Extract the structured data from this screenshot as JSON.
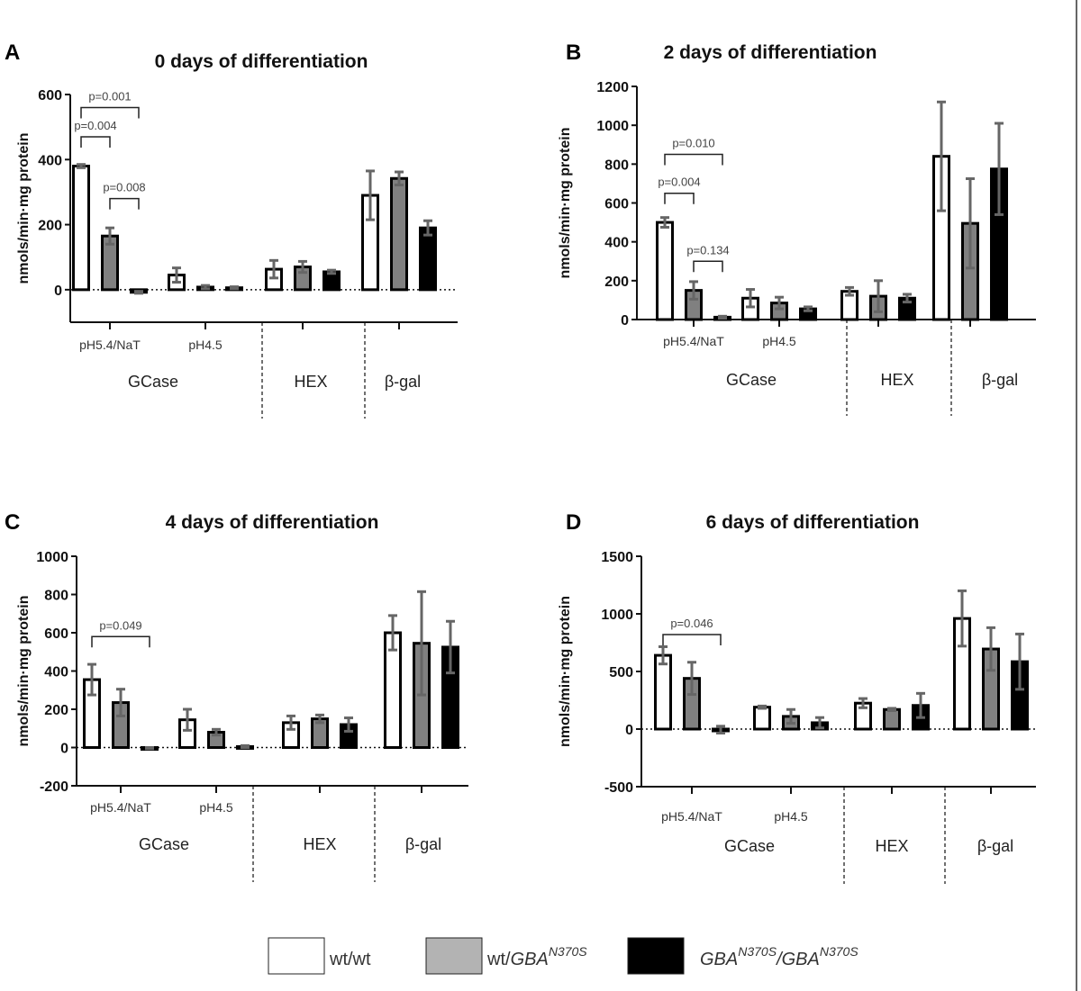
{
  "colors": {
    "wt_wt": "#ffffff",
    "wt_het": "#808080",
    "hom": "#000000",
    "error_bar": "#666666",
    "legend_het": "#b3b3b3"
  },
  "legend": [
    {
      "label": "wt/wt",
      "color": "#ffffff"
    },
    {
      "label": "wt/",
      "italic": "GBA",
      "sup": "N370S",
      "color": "#b3b3b3"
    },
    {
      "italic": "GBA",
      "sup": "N370S",
      "sep": "/",
      "italic2": "GBA",
      "sup2": "N370S",
      "color": "#000000"
    }
  ],
  "chart_data": [
    {
      "type": "bar",
      "letter": "A",
      "title": "0 days of differentiation",
      "ylabel": "nmols/min·mg protein",
      "ylim": [
        -100,
        600
      ],
      "yticks": [
        0,
        200,
        400,
        600
      ],
      "groups": [
        "GCase",
        "HEX",
        "β-gal"
      ],
      "categories": [
        "pH5.4/NaT",
        "pH4.5",
        "",
        ""
      ],
      "series": [
        {
          "name": "wt/wt",
          "values": [
            380,
            45,
            63,
            290
          ],
          "errors": [
            5,
            22,
            27,
            75
          ]
        },
        {
          "name": "wt/GBA N370S",
          "values": [
            165,
            8,
            70,
            342
          ],
          "errors": [
            25,
            5,
            17,
            20
          ]
        },
        {
          "name": "GBA N370S/GBA N370S",
          "values": [
            -8,
            6,
            55,
            190
          ],
          "errors": [
            3,
            3,
            5,
            22
          ]
        }
      ],
      "comparisons": [
        {
          "label": "p=0.001",
          "from": 0,
          "to": 2,
          "level": 560
        },
        {
          "label": "p=0.004",
          "from": 0,
          "to": 1,
          "level": 470
        },
        {
          "label": "p=0.008",
          "from": 1,
          "to": 2,
          "level": 280
        }
      ]
    },
    {
      "type": "bar",
      "letter": "B",
      "title": "2 days of differentiation",
      "ylabel": "nmols/min·mg protein",
      "ylim": [
        0,
        1200
      ],
      "yticks": [
        0,
        200,
        400,
        600,
        800,
        1000,
        1200
      ],
      "groups": [
        "GCase",
        "HEX",
        "β-gal"
      ],
      "categories": [
        "pH5.4/NaT",
        "pH4.5",
        "",
        ""
      ],
      "series": [
        {
          "name": "wt/wt",
          "values": [
            500,
            110,
            145,
            840
          ],
          "errors": [
            25,
            45,
            20,
            280
          ]
        },
        {
          "name": "wt/GBA N370S",
          "values": [
            150,
            85,
            120,
            495
          ],
          "errors": [
            45,
            30,
            80,
            230
          ]
        },
        {
          "name": "GBA N370S/GBA N370S",
          "values": [
            12,
            55,
            110,
            775
          ],
          "errors": [
            5,
            10,
            20,
            235
          ]
        }
      ],
      "comparisons": [
        {
          "label": "p=0.010",
          "from": 0,
          "to": 2,
          "level": 850
        },
        {
          "label": "p=0.004",
          "from": 0,
          "to": 1,
          "level": 650
        },
        {
          "label": "p=0.134",
          "from": 1,
          "to": 2,
          "level": 300
        }
      ]
    },
    {
      "type": "bar",
      "letter": "C",
      "title": "4 days of differentiation",
      "ylabel": "nmols/min·mg protein",
      "ylim": [
        -200,
        1000
      ],
      "yticks": [
        -200,
        0,
        200,
        400,
        600,
        800,
        1000
      ],
      "groups": [
        "GCase",
        "HEX",
        "β-gal"
      ],
      "categories": [
        "pH5.4/NaT",
        "pH4.5",
        "",
        ""
      ],
      "series": [
        {
          "name": "wt/wt",
          "values": [
            355,
            145,
            130,
            600
          ],
          "errors": [
            80,
            55,
            35,
            90
          ]
        },
        {
          "name": "wt/GBA N370S",
          "values": [
            235,
            80,
            150,
            545
          ],
          "errors": [
            70,
            15,
            20,
            270
          ]
        },
        {
          "name": "GBA N370S/GBA N370S",
          "values": [
            -3,
            5,
            120,
            525
          ],
          "errors": [
            3,
            5,
            35,
            135
          ]
        }
      ],
      "comparisons": [
        {
          "label": "p=0.049",
          "from": 0,
          "to": 2,
          "level": 580
        }
      ]
    },
    {
      "type": "bar",
      "letter": "D",
      "title": "6 days of differentiation",
      "ylabel": "nmols/min·mg protein",
      "ylim": [
        -500,
        1500
      ],
      "yticks": [
        -500,
        0,
        500,
        1000,
        1500
      ],
      "groups": [
        "GCase",
        "HEX",
        "β-gal"
      ],
      "categories": [
        "pH5.4/NaT",
        "pH4.5",
        "",
        ""
      ],
      "series": [
        {
          "name": "wt/wt",
          "values": [
            640,
            190,
            225,
            960
          ],
          "errors": [
            75,
            10,
            40,
            240
          ]
        },
        {
          "name": "wt/GBA N370S",
          "values": [
            440,
            110,
            170,
            695
          ],
          "errors": [
            140,
            60,
            10,
            185
          ]
        },
        {
          "name": "GBA N370S/GBA N370S",
          "values": [
            -5,
            55,
            205,
            585
          ],
          "errors": [
            30,
            45,
            105,
            240
          ]
        }
      ],
      "comparisons": [
        {
          "label": "p=0.046",
          "from": 0,
          "to": 2,
          "level": 820
        }
      ]
    }
  ]
}
